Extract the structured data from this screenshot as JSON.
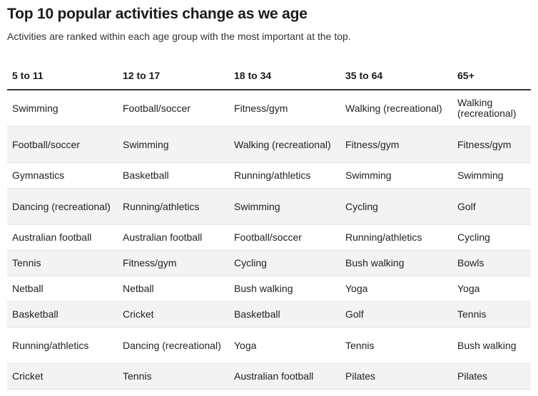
{
  "title": "Top 10 popular activities change as we age",
  "subtitle": "Activities are ranked within each age group with the most important at the top.",
  "chart_data": {
    "type": "table",
    "columns": [
      "5 to 11",
      "12 to 17",
      "18 to 34",
      "35 to 64",
      "65+"
    ],
    "rows": [
      [
        "Swimming",
        "Football/soccer",
        "Fitness/gym",
        "Walking (recreational)",
        "Walking (recreational)"
      ],
      [
        "Football/soccer",
        "Swimming",
        "Walking (recreational)",
        "Fitness/gym",
        "Fitness/gym"
      ],
      [
        "Gymnastics",
        "Basketball",
        "Running/athletics",
        "Swimming",
        "Swimming"
      ],
      [
        "Dancing (recreational)",
        "Running/athletics",
        "Swimming",
        "Cycling",
        "Golf"
      ],
      [
        "Australian football",
        "Australian football",
        "Football/soccer",
        "Running/athletics",
        "Cycling"
      ],
      [
        "Tennis",
        "Fitness/gym",
        "Cycling",
        "Bush walking",
        "Bowls"
      ],
      [
        "Netball",
        "Netball",
        "Bush walking",
        "Yoga",
        "Yoga"
      ],
      [
        "Basketball",
        "Cricket",
        "Basketball",
        "Golf",
        "Tennis"
      ],
      [
        "Running/athletics",
        "Dancing (recreational)",
        "Yoga",
        "Tennis",
        "Bush walking"
      ],
      [
        "Cricket",
        "Tennis",
        "Australian football",
        "Pilates",
        "Pilates"
      ]
    ]
  }
}
